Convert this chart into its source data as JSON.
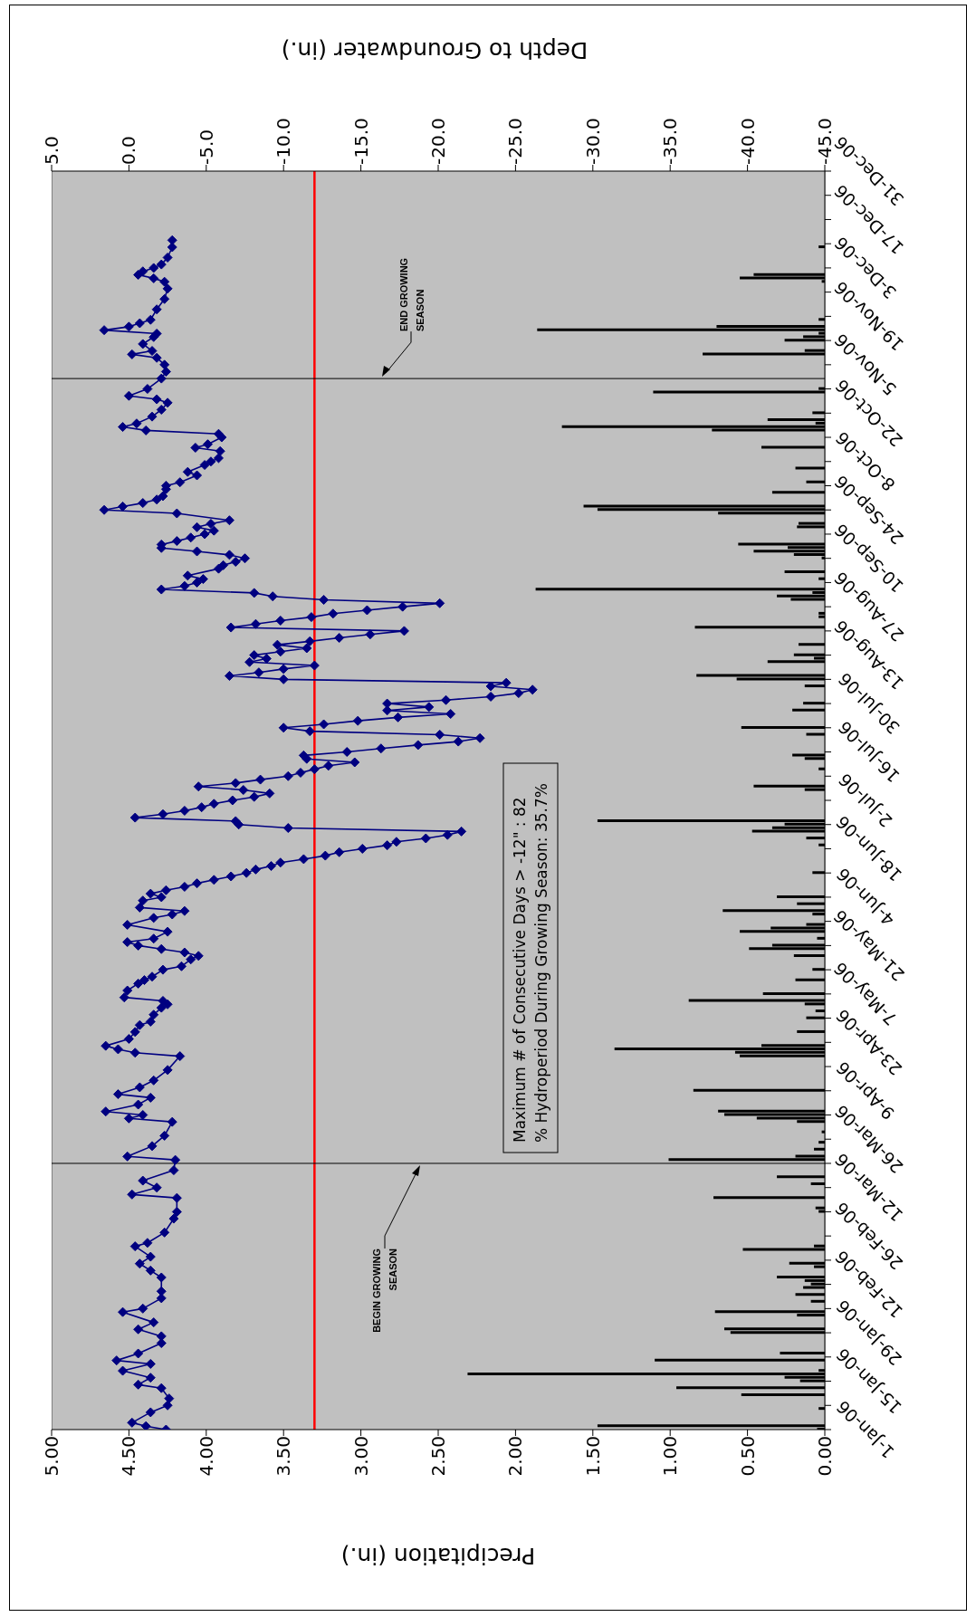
{
  "chart_data": {
    "type": "bar",
    "orientation": "horizontal",
    "xlabel": "Precipitation (in.)",
    "x2label": "Depth to Groundwater (in.)",
    "marker": "diamond",
    "line_style": "solid",
    "ylim": [
      "--01-01",
      "--12-31"
    ],
    "yticks": [
      {
        "value": "--01-01",
        "label": "1-Jan-06"
      },
      {
        "value": "--01-08",
        "label": null
      },
      {
        "value": "--01-15",
        "label": "15-Jan-06"
      },
      {
        "value": "--01-22",
        "label": null
      },
      {
        "value": "--01-29",
        "label": "29-Jan-06"
      },
      {
        "value": "--02-05",
        "label": null
      },
      {
        "value": "--02-12",
        "label": "12-Feb-06"
      },
      {
        "value": "--02-19",
        "label": null
      },
      {
        "value": "--02-26",
        "label": "26-Feb-06"
      },
      {
        "value": "--03-05",
        "label": null
      },
      {
        "value": "--03-12",
        "label": "12-Mar-06"
      },
      {
        "value": "--03-19",
        "label": null
      },
      {
        "value": "--03-26",
        "label": "26-Mar-06"
      },
      {
        "value": "--04-02",
        "label": null
      },
      {
        "value": "--04-09",
        "label": "9-Apr-06"
      },
      {
        "value": "--04-16",
        "label": null
      },
      {
        "value": "--04-23",
        "label": "23-Apr-06"
      },
      {
        "value": "--04-30",
        "label": null
      },
      {
        "value": "--05-07",
        "label": "7-May-06"
      },
      {
        "value": "--05-14",
        "label": null
      },
      {
        "value": "--05-21",
        "label": "21-May-06"
      },
      {
        "value": "--05-28",
        "label": null
      },
      {
        "value": "--06-04",
        "label": "4-Jun-06"
      },
      {
        "value": "--06-11",
        "label": null
      },
      {
        "value": "--06-18",
        "label": "18-Jun-06"
      },
      {
        "value": "--06-25",
        "label": null
      },
      {
        "value": "--07-02",
        "label": "2-Jul-06"
      },
      {
        "value": "--07-09",
        "label": null
      },
      {
        "value": "--07-16",
        "label": "16-Jul-06"
      },
      {
        "value": "--07-23",
        "label": null
      },
      {
        "value": "--07-30",
        "label": "30-Jul-06"
      },
      {
        "value": "--08-06",
        "label": null
      },
      {
        "value": "--08-13",
        "label": "13-Aug-06"
      },
      {
        "value": "--08-20",
        "label": null
      },
      {
        "value": "--08-27",
        "label": "27-Aug-06"
      },
      {
        "value": "--09-03",
        "label": null
      },
      {
        "value": "--09-10",
        "label": "10-Sep-06"
      },
      {
        "value": "--09-17",
        "label": null
      },
      {
        "value": "--09-24",
        "label": "24-Sep-06"
      },
      {
        "value": "--10-01",
        "label": null
      },
      {
        "value": "--10-08",
        "label": "8-Oct-06"
      },
      {
        "value": "--10-15",
        "label": null
      },
      {
        "value": "--10-22",
        "label": "22-Oct-06"
      },
      {
        "value": "--10-29",
        "label": null
      },
      {
        "value": "--11-05",
        "label": "5-Nov-06"
      },
      {
        "value": "--11-12",
        "label": null
      },
      {
        "value": "--11-19",
        "label": "19-Nov-06"
      },
      {
        "value": "--11-26",
        "label": null
      },
      {
        "value": "--12-03",
        "label": "3-Dec-06"
      },
      {
        "value": "--12-10",
        "label": null
      },
      {
        "value": "--12-17",
        "label": "17-Dec-06"
      },
      {
        "value": "--12-24",
        "label": null
      },
      {
        "value": "--12-31",
        "label": "31-Dec-06"
      }
    ],
    "xlim": [
      5,
      0
    ],
    "xticks": [
      {
        "value": 0,
        "label": "0.00"
      },
      {
        "value": 0.5,
        "label": "0.50"
      },
      {
        "value": 1,
        "label": "1.00"
      },
      {
        "value": 1.5,
        "label": "1.50"
      },
      {
        "value": 2,
        "label": "2.00"
      },
      {
        "value": 2.5,
        "label": "2.50"
      },
      {
        "value": 3,
        "label": "3.00"
      },
      {
        "value": 3.5,
        "label": "3.50"
      },
      {
        "value": 4,
        "label": "4.00"
      },
      {
        "value": 4.5,
        "label": "4.50"
      },
      {
        "value": 5,
        "label": "5.00"
      }
    ],
    "x2lim": [
      5,
      -45
    ],
    "x2ticks": [
      {
        "value": 5,
        "label": "5.0"
      },
      {
        "value": 0,
        "label": "0.0"
      },
      {
        "value": -5,
        "label": "-5.0"
      },
      {
        "value": -10,
        "label": "-10.0"
      },
      {
        "value": -15,
        "label": "-15.0"
      },
      {
        "value": -20,
        "label": "-20.0"
      },
      {
        "value": -25,
        "label": "-25.0"
      },
      {
        "value": -30,
        "label": "-30.0"
      },
      {
        "value": -35,
        "label": "-35.0"
      },
      {
        "value": -40,
        "label": "-40.0"
      },
      {
        "value": -45,
        "label": "-45.0"
      }
    ],
    "ref_lines": [
      {
        "axis": "x2",
        "value": -12,
        "color": "#ff0000"
      },
      {
        "axis": "y",
        "value": "--03-19",
        "label": "BEGIN GROWING SEASON",
        "color": "#000000"
      },
      {
        "axis": "y",
        "value": "--11-01",
        "label": "END GROWING SEASON",
        "color": "#000000"
      }
    ],
    "annotations": [
      "Maximum # of Consecutive Days > -12\" : 82",
      "% Hydroperiod During Growing Season: 35.7%"
    ],
    "series": [
      {
        "color": "#000000",
        "x": [
          "--01-01",
          "--01-02",
          "--01-07",
          "--01-11",
          "--01-13",
          "--01-15",
          "--01-16",
          "--01-17",
          "--01-18",
          "--01-21",
          "--01-23",
          "--01-29",
          "--01-30",
          "--02-03",
          "--02-04",
          "--02-07",
          "--02-09",
          "--02-11",
          "--02-12",
          "--02-13",
          "--02-14",
          "--02-17",
          "--02-18",
          "--02-22",
          "--02-23",
          "--03-05",
          "--03-06",
          "--03-09",
          "--03-13",
          "--03-15",
          "--03-20",
          "--03-21",
          "--03-23",
          "--03-25",
          "--03-28",
          "--03-31",
          "--04-01",
          "--04-02",
          "--04-03",
          "--04-09",
          "--04-19",
          "--04-20",
          "--04-21",
          "--04-22",
          "--04-26",
          "--04-30",
          "--05-02",
          "--05-04",
          "--05-05",
          "--05-07",
          "--05-11",
          "--05-14",
          "--05-18",
          "--05-20",
          "--05-21",
          "--05-23",
          "--05-25",
          "--05-26",
          "--05-27",
          "--05-30",
          "--05-31",
          "--06-02",
          "--06-04",
          "--06-11",
          "--06-19",
          "--06-21",
          "--06-23",
          "--06-24",
          "--06-25",
          "--06-26",
          "--07-05",
          "--07-06",
          "--07-11",
          "--07-14",
          "--07-15",
          "--07-21",
          "--07-23",
          "--07-28",
          "--07-30",
          "--08-04",
          "--08-06",
          "--08-07",
          "--08-11",
          "--08-12",
          "--08-13",
          "--08-16",
          "--08-21",
          "--08-24",
          "--08-25",
          "--08-29",
          "--08-30",
          "--08-31",
          "--09-01",
          "--09-04",
          "--09-06",
          "--09-10",
          "--09-11",
          "--09-12",
          "--09-13",
          "--09-14",
          "--09-19",
          "--09-20",
          "--09-23",
          "--09-24",
          "--09-25",
          "--09-29",
          "--10-02",
          "--10-06",
          "--10-12",
          "--10-17",
          "--10-18",
          "--10-19",
          "--10-20",
          "--10-22",
          "--10-28",
          "--10-29",
          "--11-08",
          "--11-09",
          "--11-12",
          "--11-13",
          "--11-14",
          "--11-15",
          "--11-16",
          "--11-18",
          "--11-29",
          "--11-30",
          "--12-01",
          "--12-09"
        ],
        "values": [
          0.05,
          1.47,
          0.04,
          0.54,
          0.96,
          0.16,
          0.26,
          2.31,
          0.04,
          1.1,
          0.29,
          0.61,
          0.65,
          0.18,
          0.71,
          0.09,
          0.19,
          0.14,
          0.09,
          0.13,
          0.31,
          0.07,
          0.23,
          0.53,
          0.07,
          0.04,
          0.06,
          0.72,
          0.09,
          0.31,
          1.01,
          0.19,
          0.07,
          0.04,
          0.02,
          0.18,
          0.44,
          0.65,
          0.69,
          0.85,
          0.55,
          0.58,
          1.36,
          0.41,
          0.18,
          0.12,
          0.06,
          0.13,
          0.88,
          0.4,
          0.19,
          0.08,
          0.2,
          0.49,
          0.34,
          0.05,
          0.55,
          0.35,
          0.12,
          0.08,
          0.66,
          0.18,
          0.31,
          0.08,
          0.04,
          0.12,
          0.47,
          0.34,
          0.26,
          1.47,
          0.13,
          0.46,
          0.04,
          0.13,
          0.21,
          0.12,
          0.54,
          0.21,
          0.14,
          0.13,
          0.57,
          0.83,
          0.37,
          0.07,
          0.2,
          0.17,
          0.84,
          0.04,
          0.04,
          0.22,
          0.31,
          0.08,
          1.87,
          0.04,
          0.26,
          0.02,
          0.2,
          0.46,
          0.24,
          0.56,
          0.18,
          0.17,
          0.69,
          1.47,
          1.56,
          0.34,
          0.12,
          0.19,
          0.41,
          0.73,
          1.7,
          0.06,
          0.37,
          0.08,
          1.11,
          0.04,
          0.79,
          0.13,
          0.26,
          0.14,
          0.04,
          1.86,
          0.7,
          0.04,
          0.02,
          0.55,
          0.46,
          0.04
        ]
      },
      {
        "type": "line",
        "axis": "x2",
        "color": "#000080",
        "x": [
          "--01-01",
          "--01-02",
          "--01-03",
          "--01-06",
          "--01-08",
          "--01-10",
          "--01-13",
          "--01-14",
          "--01-16",
          "--01-18",
          "--01-20",
          "--01-21",
          "--01-23",
          "--01-26",
          "--01-28",
          "--01-30",
          "--02-01",
          "--02-04",
          "--02-05",
          "--02-08",
          "--02-10",
          "--02-14",
          "--02-16",
          "--02-18",
          "--02-20",
          "--02-23",
          "--02-24",
          "--02-27",
          "--03-03",
          "--03-05",
          "--03-09",
          "--03-10",
          "--03-12",
          "--03-14",
          "--03-17",
          "--03-20",
          "--03-21",
          "--03-24",
          "--03-27",
          "--03-31",
          "--04-01",
          "--04-02",
          "--04-03",
          "--04-05",
          "--04-07",
          "--04-08",
          "--04-10",
          "--04-12",
          "--04-15",
          "--04-19",
          "--04-20",
          "--04-21",
          "--04-22",
          "--04-24",
          "--04-26",
          "--04-28",
          "--04-29",
          "--05-01",
          "--05-03",
          "--05-04",
          "--05-05",
          "--05-06",
          "--05-08",
          "--05-10",
          "--05-11",
          "--05-12",
          "--05-14",
          "--05-15",
          "--05-17",
          "--05-18",
          "--05-19",
          "--05-20",
          "--05-21",
          "--05-22",
          "--05-23",
          "--05-25",
          "--05-27",
          "--05-29",
          "--05-30",
          "--05-31",
          "--06-01",
          "--06-03",
          "--06-04",
          "--06-05",
          "--06-06",
          "--06-07",
          "--06-08",
          "--06-09",
          "--06-10",
          "--06-11",
          "--06-12",
          "--06-13",
          "--06-14",
          "--06-15",
          "--06-16",
          "--06-17",
          "--06-18",
          "--06-19",
          "--06-20",
          "--06-21",
          "--06-22",
          "--06-23",
          "--06-24",
          "--06-25",
          "--06-26",
          "--06-27",
          "--06-28",
          "--06-29",
          "--06-30",
          "--07-01",
          "--07-02",
          "--07-03",
          "--07-04",
          "--07-05",
          "--07-06",
          "--07-07",
          "--07-08",
          "--07-09",
          "--07-10",
          "--07-11",
          "--07-12",
          "--07-13",
          "--07-14",
          "--07-15",
          "--07-16",
          "--07-17",
          "--07-18",
          "--07-19",
          "--07-20",
          "--07-21",
          "--07-22",
          "--07-23",
          "--07-24",
          "--07-25",
          "--07-26",
          "--07-27",
          "--07-28",
          "--07-29",
          "--07-30",
          "--07-31",
          "--08-01",
          "--08-02",
          "--08-03",
          "--08-04",
          "--08-05",
          "--08-06",
          "--08-07",
          "--08-08",
          "--08-09",
          "--08-10",
          "--08-11",
          "--08-12",
          "--08-13",
          "--08-14",
          "--08-15",
          "--08-16",
          "--08-17",
          "--08-18",
          "--08-19",
          "--08-20",
          "--08-21",
          "--08-22",
          "--08-23",
          "--08-24",
          "--08-25",
          "--08-26",
          "--08-27",
          "--08-28",
          "--08-29",
          "--08-30",
          "--08-31",
          "--09-01",
          "--09-02",
          "--09-03",
          "--09-04",
          "--09-05",
          "--09-07",
          "--09-08",
          "--09-09",
          "--09-10",
          "--09-11",
          "--09-12",
          "--09-13",
          "--09-14",
          "--09-15",
          "--09-16",
          "--09-17",
          "--09-18",
          "--09-19",
          "--09-20",
          "--09-21",
          "--09-23",
          "--09-24",
          "--09-25",
          "--09-26",
          "--09-27",
          "--09-28",
          "--09-30",
          "--10-01",
          "--10-02",
          "--10-04",
          "--10-05",
          "--10-07",
          "--10-08",
          "--10-09",
          "--10-11",
          "--10-12",
          "--10-13",
          "--10-15",
          "--10-16",
          "--10-17",
          "--10-18",
          "--10-19",
          "--10-21",
          "--10-23",
          "--10-25",
          "--10-26",
          "--10-27",
          "--10-29",
          "--11-01",
          "--11-03",
          "--11-05",
          "--11-07",
          "--11-08",
          "--11-09",
          "--11-11",
          "--11-13",
          "--11-14",
          "--11-15",
          "--11-16",
          "--11-17",
          "--11-18",
          "--11-21",
          "--11-24",
          "--11-27",
          "--11-29",
          "--11-30",
          "--12-01",
          "--12-02",
          "--12-03",
          "--12-04",
          "--12-06",
          "--12-09",
          "--12-11"
        ],
        "values": [
          -2.4,
          -1.1,
          -0.2,
          -1.4,
          -2.5,
          -2.6,
          -2.1,
          -0.6,
          -1.4,
          0.4,
          -1.4,
          0.8,
          -0.6,
          -2.1,
          -2.1,
          -0.6,
          -1.6,
          0.4,
          -0.9,
          -2.1,
          -2.1,
          -2.1,
          -1.4,
          -0.7,
          -1.4,
          -0.4,
          -1.2,
          -2.3,
          -2.9,
          -3.1,
          -3.1,
          -0.2,
          -1.8,
          -0.9,
          -2.9,
          -3.0,
          0.1,
          -1.5,
          -2.3,
          -2.8,
          0.0,
          -0.9,
          1.5,
          -0.6,
          -1.4,
          0.7,
          -0.7,
          -1.6,
          -2.5,
          -3.3,
          -0.4,
          0.7,
          1.5,
          0.0,
          -0.4,
          -0.7,
          -1.4,
          -1.6,
          -2.1,
          -2.5,
          -2.2,
          0.3,
          0.1,
          -0.6,
          -1.0,
          -1.5,
          -2.2,
          -3.4,
          -4.0,
          -4.5,
          -3.6,
          -2.1,
          -0.6,
          0.1,
          -1.6,
          -2.5,
          0.1,
          -1.6,
          -2.8,
          -3.6,
          -0.7,
          -0.9,
          -2.1,
          -1.4,
          -2.4,
          -3.6,
          -4.4,
          -5.5,
          -6.6,
          -7.6,
          -8.2,
          -9.2,
          -9.8,
          -11.3,
          -12.7,
          -13.6,
          -15.1,
          -16.7,
          -17.3,
          -19.2,
          -20.6,
          -21.5,
          -10.3,
          -7.1,
          -6.9,
          -0.4,
          -2.2,
          -3.6,
          -4.7,
          -5.5,
          -6.7,
          -8.1,
          -9.1,
          -7.4,
          -4.5,
          -6.9,
          -8.5,
          -10.3,
          -11.1,
          -12.0,
          -12.9,
          -14.6,
          -11.5,
          -11.3,
          -14.1,
          -16.3,
          -18.7,
          -21.3,
          -22.7,
          -20.1,
          -11.7,
          -10.0,
          -12.6,
          -14.8,
          -17.4,
          -20.8,
          -16.7,
          -19.4,
          -16.7,
          -20.5,
          -23.4,
          -25.2,
          -26.1,
          -23.4,
          -24.4,
          -10.0,
          -6.5,
          -8.4,
          -10.0,
          -12.0,
          -7.8,
          -8.9,
          -8.1,
          -9.8,
          -11.5,
          -9.6,
          -11.7,
          -13.6,
          -15.6,
          -17.8,
          -6.6,
          -8.2,
          -9.8,
          -11.8,
          -13.2,
          -15.4,
          -17.7,
          -20.1,
          -12.6,
          -9.3,
          -8.1,
          -2.1,
          -3.6,
          -4.4,
          -4.8,
          -3.8,
          -5.8,
          -6.1,
          -6.9,
          -7.5,
          -6.5,
          -4.4,
          -2.1,
          -2.1,
          -3.1,
          -4.0,
          -4.9,
          -5.5,
          -4.4,
          -5.3,
          -6.5,
          -3.1,
          1.6,
          0.4,
          -0.9,
          -1.8,
          -2.2,
          -2.4,
          -2.4,
          -3.3,
          -4.4,
          -3.8,
          -4.9,
          -5.3,
          -5.8,
          -5.9,
          -4.3,
          -5.1,
          -6.0,
          -5.8,
          -1.1,
          0.4,
          -0.5,
          -1.5,
          -2.1,
          -2.5,
          -1.8,
          0.0,
          -1.2,
          -2.1,
          -2.4,
          -2.3,
          -1.8,
          -0.2,
          -1.5,
          -0.9,
          -1.6,
          -1.8,
          1.6,
          0.0,
          -0.7,
          -1.4,
          -1.8,
          -2.3,
          -2.5,
          -2.3,
          -1.6,
          -0.6,
          -0.9,
          -1.6,
          -2.1,
          -2.5,
          -2.8,
          -2.8
        ]
      }
    ]
  }
}
